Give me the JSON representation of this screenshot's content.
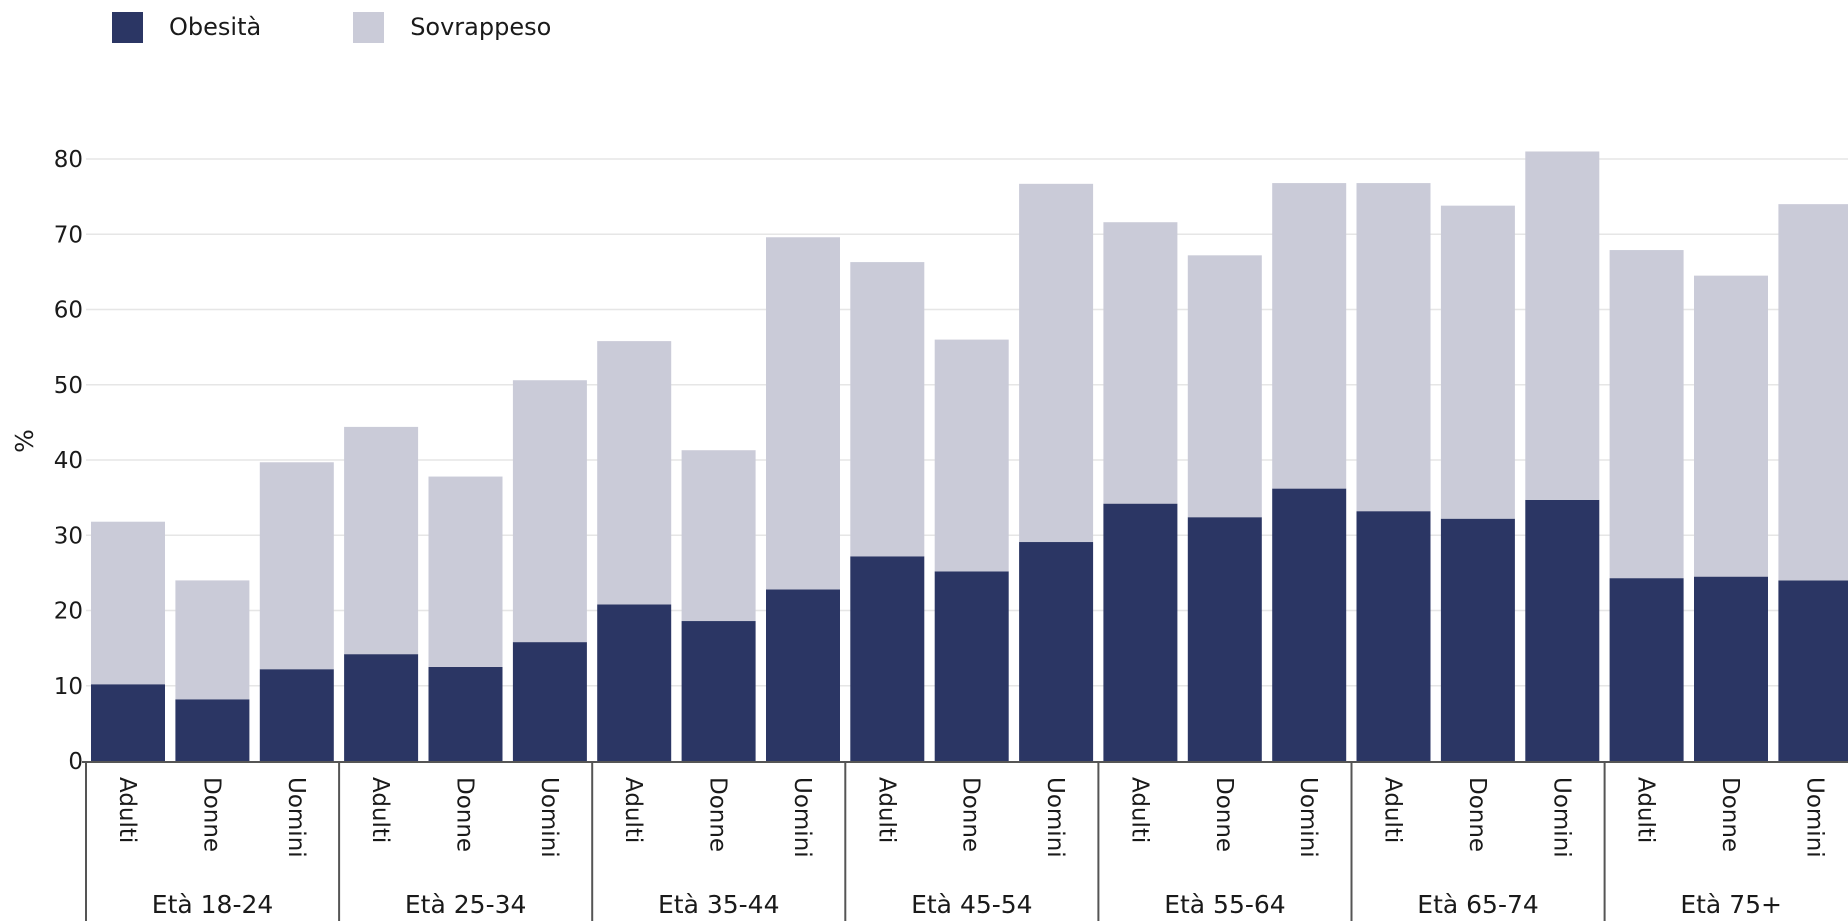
{
  "chart_data": {
    "type": "bar",
    "stacked": true,
    "ylabel": "%",
    "ylim": [
      0,
      80
    ],
    "yticks": [
      0,
      10,
      20,
      30,
      40,
      50,
      60,
      70,
      80
    ],
    "groups": [
      "Età 18-24",
      "Età 25-34",
      "Età 35-44",
      "Età 45-54",
      "Età 55-64",
      "Età 65-74",
      "Età 75+"
    ],
    "subcategories": [
      "Adulti",
      "Donne",
      "Uomini"
    ],
    "series": [
      {
        "name": "Obesità",
        "color": "#2b3664",
        "values": [
          10.2,
          8.2,
          12.2,
          14.2,
          12.5,
          15.8,
          20.8,
          18.6,
          22.8,
          27.2,
          25.2,
          29.1,
          34.2,
          32.4,
          36.2,
          33.2,
          32.2,
          34.7,
          24.3,
          24.5,
          24.0
        ]
      },
      {
        "name": "Sovrappeso",
        "color": "#cacbd8",
        "values": [
          21.6,
          15.8,
          27.5,
          30.2,
          25.3,
          34.8,
          35.0,
          22.7,
          46.8,
          39.1,
          30.8,
          47.6,
          37.4,
          34.8,
          40.6,
          43.6,
          41.6,
          46.3,
          43.6,
          40.0,
          50.0
        ]
      }
    ],
    "grid": true,
    "legend": "top-left"
  }
}
